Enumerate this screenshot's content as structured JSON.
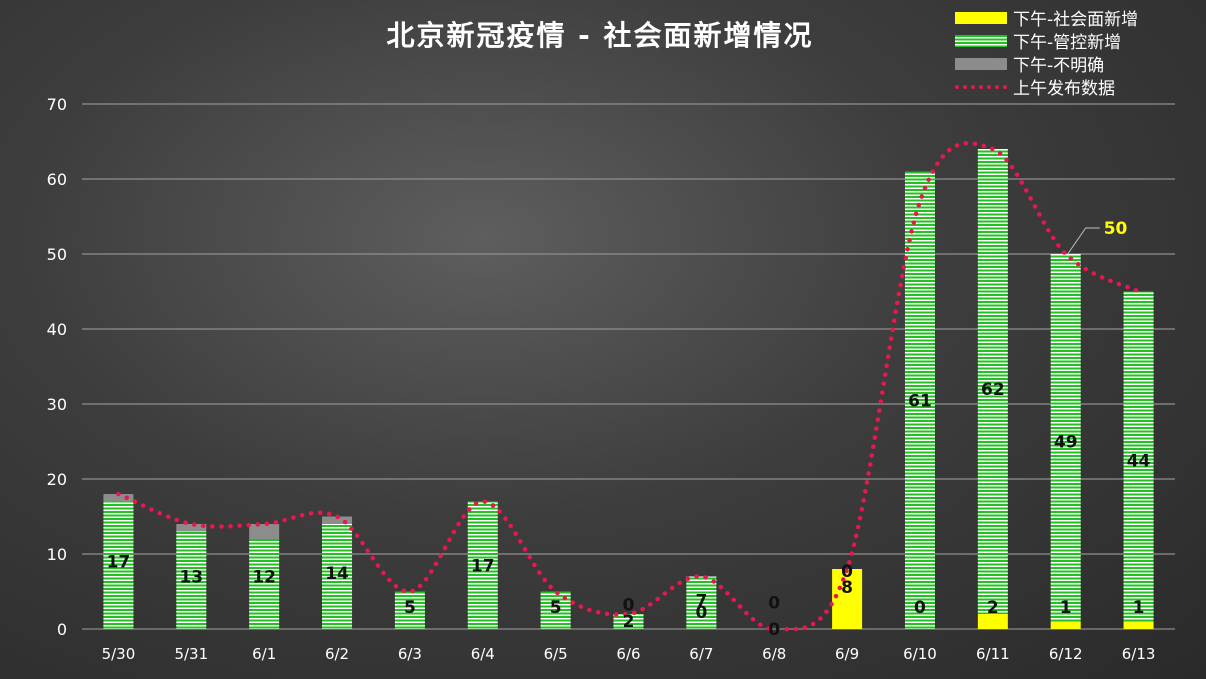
{
  "title": "北京新冠疫情 - 社会面新增情况",
  "legend": {
    "social": "下午-社会面新增",
    "control": "下午-管控新增",
    "unknown": "下午-不明确",
    "morning": "上午发布数据"
  },
  "colors": {
    "social": "#ffff00",
    "control_stripe": "#22c022",
    "unknown": "#8c8c8c",
    "morning_line": "#e8174f",
    "callout": "#ffff00"
  },
  "chart_data": {
    "type": "bar",
    "stacked": true,
    "categories": [
      "5/30",
      "5/31",
      "6/1",
      "6/2",
      "6/3",
      "6/4",
      "6/5",
      "6/6",
      "6/7",
      "6/8",
      "6/9",
      "6/10",
      "6/11",
      "6/12",
      "6/13"
    ],
    "series": [
      {
        "name": "下午-社会面新增",
        "values": [
          0,
          0,
          0,
          0,
          0,
          0,
          0,
          0,
          0,
          0,
          8,
          0,
          2,
          1,
          1
        ]
      },
      {
        "name": "下午-管控新增",
        "values": [
          17,
          13,
          12,
          14,
          5,
          17,
          5,
          2,
          7,
          0,
          0,
          61,
          62,
          49,
          44
        ]
      },
      {
        "name": "下午-不明确",
        "values": [
          1,
          1,
          2,
          1,
          0,
          0,
          0,
          0,
          0,
          0,
          0,
          0,
          0,
          0,
          0
        ]
      },
      {
        "name": "上午发布数据",
        "type": "line",
        "style": "dotted",
        "values": [
          18,
          14,
          14,
          15,
          5,
          17,
          5,
          2,
          7,
          0,
          8,
          57,
          64,
          50,
          45
        ]
      }
    ],
    "bar_labels": [
      [
        "17"
      ],
      [
        "13"
      ],
      [
        "12"
      ],
      [
        "14"
      ],
      [
        "5"
      ],
      [
        "17"
      ],
      [
        "5"
      ],
      [
        "2",
        "0"
      ],
      [
        "7",
        "0"
      ],
      [
        "0",
        "0"
      ],
      [
        "8",
        "0"
      ],
      [
        "61",
        "0"
      ],
      [
        "62",
        "2"
      ],
      [
        "49",
        "1"
      ],
      [
        "44",
        "1"
      ]
    ],
    "callout": {
      "category": "6/12",
      "text": "50"
    },
    "ylim": [
      0,
      70
    ],
    "yticks": [
      0,
      10,
      20,
      30,
      40,
      50,
      60,
      70
    ],
    "grid": true,
    "legend_position": "top-right",
    "xlabel": "",
    "ylabel": ""
  }
}
